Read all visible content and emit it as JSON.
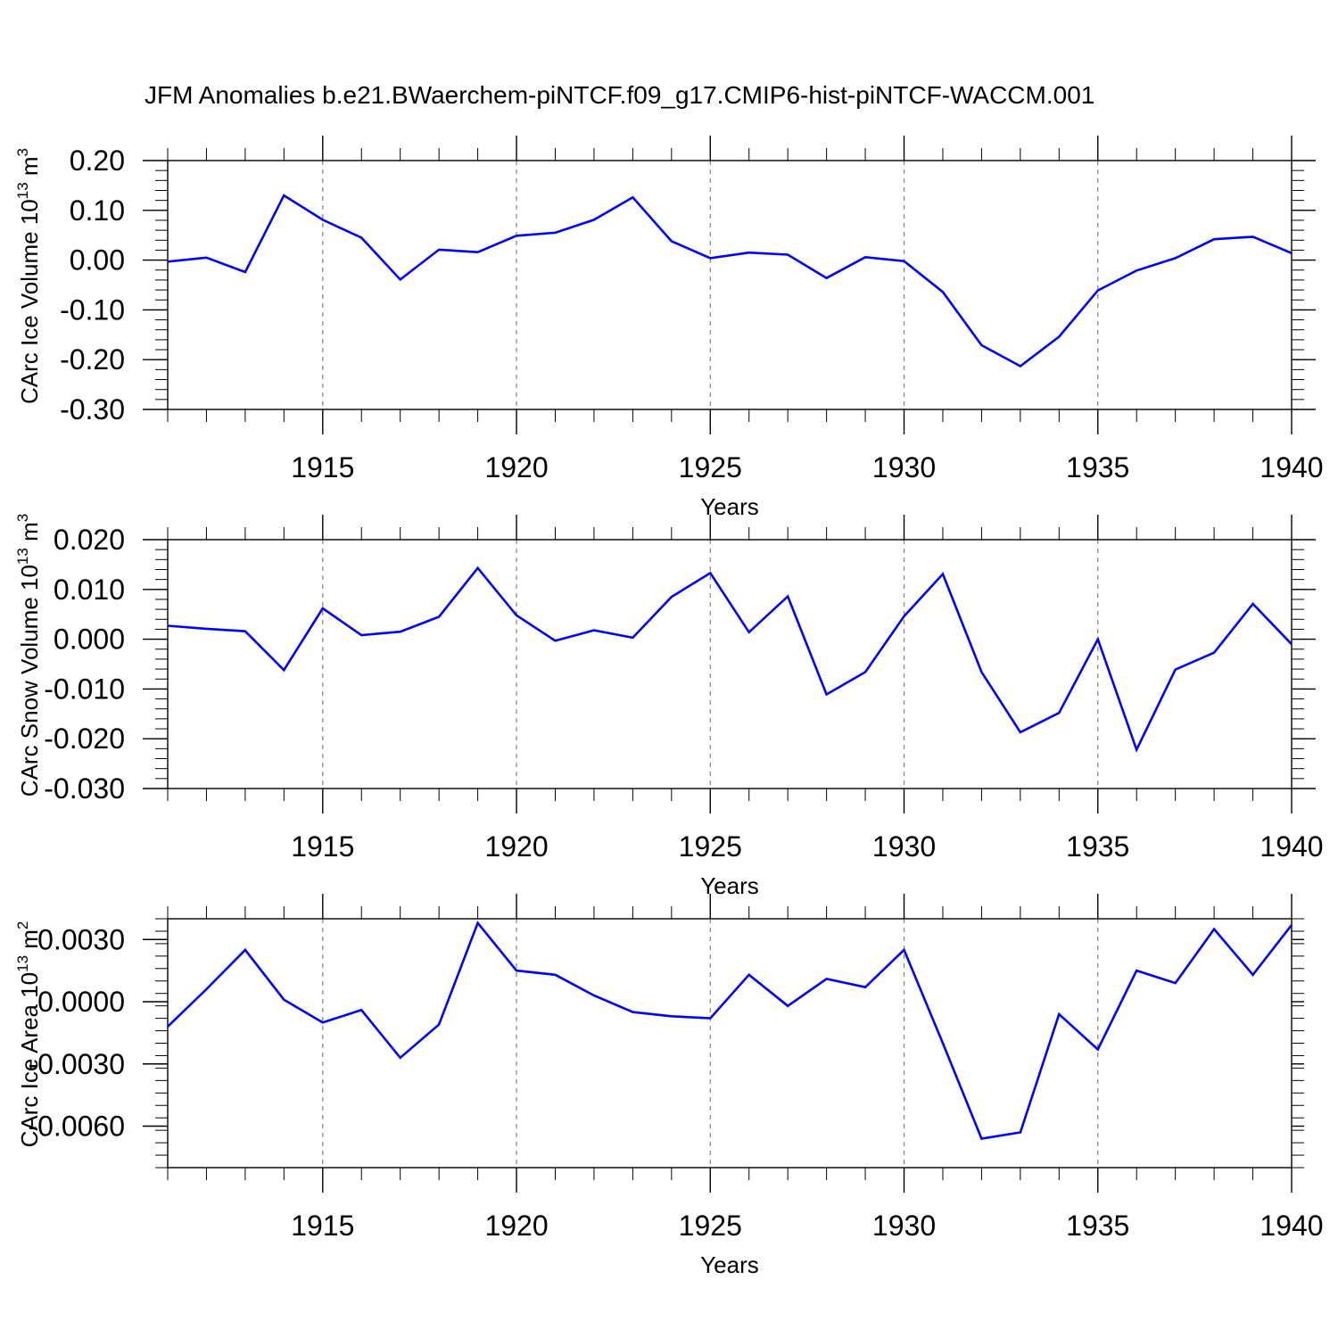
{
  "title": "JFM Anomalies b.e21.BWaerchem-piNTCF.f09_g17.CMIP6-hist-piNTCF-WACCM.001",
  "colors": {
    "line": "#0000ff",
    "axis": "#000000",
    "grid": "#808080",
    "background": "#ffffff"
  },
  "chart_data": [
    {
      "type": "line",
      "title": "JFM Anomalies b.e21.BWaerchem-piNTCF.f09_g17.CMIP6-hist-piNTCF-WACCM.001",
      "xlabel": "Years",
      "ylabel": "CArc Ice Volume 10",
      "ylabel_exp": "13",
      "ylabel_unit": " m",
      "ylabel_unit_exp": "3",
      "xlim": [
        1911,
        1940
      ],
      "ylim": [
        -0.3,
        0.2
      ],
      "x_ticks": [
        1915,
        1920,
        1925,
        1930,
        1935,
        1940
      ],
      "x_tick_labels": [
        "1915",
        "1920",
        "1925",
        "1930",
        "1935",
        "1940"
      ],
      "y_ticks": [
        0.2,
        0.1,
        0.0,
        -0.1,
        -0.2,
        -0.3
      ],
      "y_tick_labels": [
        "0.20",
        "0.10",
        "0.00",
        "-0.10",
        "-0.20",
        "-0.30"
      ],
      "y_minor_step": 0.02,
      "grid": "vertical dashed at major x ticks",
      "x": [
        1911,
        1912,
        1913,
        1914,
        1915,
        1916,
        1917,
        1918,
        1919,
        1920,
        1921,
        1922,
        1923,
        1924,
        1925,
        1926,
        1927,
        1928,
        1929,
        1930,
        1931,
        1932,
        1933,
        1934,
        1935,
        1936,
        1937,
        1938,
        1939,
        1940
      ],
      "series": [
        {
          "name": "CArc Ice Volume",
          "values": [
            -0.003,
            0.005,
            -0.024,
            0.13,
            0.081,
            0.045,
            -0.039,
            0.021,
            0.016,
            0.049,
            0.055,
            0.081,
            0.126,
            0.038,
            0.004,
            0.015,
            0.011,
            -0.036,
            0.006,
            -0.002,
            -0.064,
            -0.171,
            -0.213,
            -0.154,
            -0.061,
            -0.021,
            0.004,
            0.042,
            0.047,
            0.014
          ]
        }
      ]
    },
    {
      "type": "line",
      "xlabel": "Years",
      "ylabel": "CArc Snow Volume 10",
      "ylabel_exp": "13",
      "ylabel_unit": " m",
      "ylabel_unit_exp": "3",
      "xlim": [
        1911,
        1940
      ],
      "ylim": [
        -0.03,
        0.02
      ],
      "x_ticks": [
        1915,
        1920,
        1925,
        1930,
        1935,
        1940
      ],
      "x_tick_labels": [
        "1915",
        "1920",
        "1925",
        "1930",
        "1935",
        "1940"
      ],
      "y_ticks": [
        0.02,
        0.01,
        0.0,
        -0.01,
        -0.02,
        -0.03
      ],
      "y_tick_labels": [
        "0.020",
        "0.010",
        "0.000",
        "-0.010",
        "-0.020",
        "-0.030"
      ],
      "y_minor_step": 0.002,
      "grid": "vertical dashed at major x ticks",
      "x": [
        1911,
        1912,
        1913,
        1914,
        1915,
        1916,
        1917,
        1918,
        1919,
        1920,
        1921,
        1922,
        1923,
        1924,
        1925,
        1926,
        1927,
        1928,
        1929,
        1930,
        1931,
        1932,
        1933,
        1934,
        1935,
        1936,
        1937,
        1938,
        1939,
        1940
      ],
      "series": [
        {
          "name": "CArc Snow Volume",
          "values": [
            0.0027,
            0.0021,
            0.0016,
            -0.0062,
            0.0062,
            0.0008,
            0.0015,
            0.0045,
            0.0143,
            0.0048,
            -0.0003,
            0.0018,
            0.0003,
            0.0085,
            0.0133,
            0.0014,
            0.0086,
            -0.0111,
            -0.0066,
            0.0046,
            0.0131,
            -0.0066,
            -0.0187,
            -0.0148,
            0.0,
            -0.0222,
            -0.0061,
            -0.0027,
            0.0071,
            -0.001
          ]
        }
      ]
    },
    {
      "type": "line",
      "xlabel": "Years",
      "ylabel": "CArc Ice Area 10",
      "ylabel_exp": "13",
      "ylabel_unit": " m",
      "ylabel_unit_exp": "2",
      "xlim": [
        1911,
        1940
      ],
      "ylim": [
        -0.008,
        0.004
      ],
      "x_ticks": [
        1915,
        1920,
        1925,
        1930,
        1935,
        1940
      ],
      "x_tick_labels": [
        "1915",
        "1920",
        "1925",
        "1930",
        "1935",
        "1940"
      ],
      "y_ticks": [
        0.003,
        0.0,
        -0.003,
        -0.006
      ],
      "y_tick_labels": [
        "0.0030",
        "0.0000",
        "-0.0030",
        "-0.0060"
      ],
      "y_minor_step": 0.0006,
      "grid": "vertical dashed at major x ticks",
      "x": [
        1911,
        1912,
        1913,
        1914,
        1915,
        1916,
        1917,
        1918,
        1919,
        1920,
        1921,
        1922,
        1923,
        1924,
        1925,
        1926,
        1927,
        1928,
        1929,
        1930,
        1931,
        1932,
        1933,
        1934,
        1935,
        1936,
        1937,
        1938,
        1939,
        1940
      ],
      "series": [
        {
          "name": "CArc Ice Area",
          "values": [
            -0.0012,
            0.0006,
            0.0025,
            0.0001,
            -0.001,
            -0.0004,
            -0.0027,
            -0.0011,
            0.0038,
            0.0015,
            0.0013,
            0.0003,
            -0.0005,
            -0.0007,
            -0.0008,
            0.0013,
            -0.0002,
            0.0011,
            0.0007,
            0.0025,
            -0.002,
            -0.0066,
            -0.0063,
            -0.0006,
            -0.0023,
            0.0015,
            0.0009,
            0.0035,
            0.0013,
            0.0037
          ]
        }
      ]
    }
  ]
}
